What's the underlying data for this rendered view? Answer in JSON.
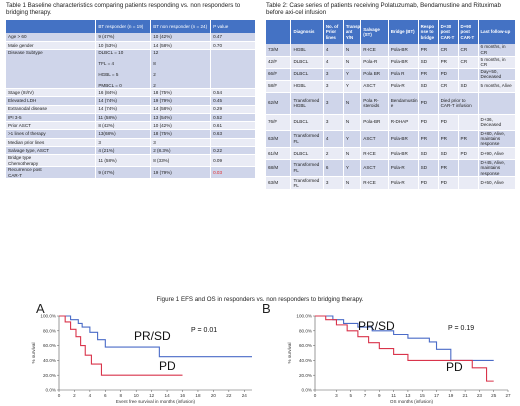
{
  "table1": {
    "caption": "Table 1 Baseline characteristics comparing patients responding vs. non responders to bridging therapy.",
    "headers": [
      "",
      "BT responder  (n = 19)",
      "BT non responder (n = 24)",
      "P value"
    ],
    "rows": [
      {
        "label": "Age > 60",
        "resp": "9 (47%)",
        "nonresp": "10 (42%)",
        "p": "0.47"
      },
      {
        "label": "Male gender",
        "resp": "10 (53%)",
        "nonresp": "14 (58%)",
        "p": "0.70"
      },
      {
        "label": "Disease Subtype",
        "resp": "DLBCL = 10\n\nTFL = 4\n\nHGBL = 5\n\nPMBCL = 0",
        "nonresp": "12\n\n8\n\n2\n\n2",
        "p": ""
      },
      {
        "label": "Stage (III/IV)",
        "resp": "16 (84%)",
        "nonresp": "18 (75%)",
        "p": "0.54"
      },
      {
        "label": "Elevated LDH",
        "resp": "14 (74%)",
        "nonresp": "19 (79%)",
        "p": "0.45"
      },
      {
        "label": "Extranodal disease",
        "resp": "14 (74%)",
        "nonresp": "14 (58%)",
        "p": "0.29"
      },
      {
        "label": "IPI 3-5",
        "resp": "11 (58%)",
        "nonresp": "13 (54%)",
        "p": "0.52"
      },
      {
        "label": "Prior ASCT",
        "resp": "8 (42%)",
        "nonresp": "10 (42%)",
        "p": "0.61"
      },
      {
        "label": ">1 lines of therapy",
        "resp": "13(68%)",
        "nonresp": "18 (75%)",
        "p": "0.63"
      },
      {
        "label": "Median prior lines",
        "resp": "3",
        "nonresp": "3",
        "p": ""
      },
      {
        "label": "Salvage type, ASCT",
        "resp": "4 (21%)",
        "nonresp": "2 (8.3%)",
        "p": "0.22"
      },
      {
        "label": "Bridge type\nChemotherapy",
        "resp": "11 (58%)",
        "nonresp": "8 (33%)",
        "p": "0.09"
      },
      {
        "label": "Recurrence      post\nCAR-T",
        "resp": "9 (47%)",
        "nonresp": "19 (79%)",
        "p": "0.03"
      }
    ]
  },
  "table2": {
    "caption": "Table 2: Case series of patients receiving Polatuzumab, Bendamustine and Rituximab before axi-cel infusion",
    "headers": [
      "",
      "Diagnosis",
      "No. of Prior lines",
      "Transpl ant Y/N",
      "Salvage (ST)",
      "Bridge (BT)",
      "Respo nse to bridge",
      "D+30 post CAR-T",
      "D+90 post CAR-T",
      "Last follow-up"
    ],
    "rows": [
      {
        "pt": "73/M",
        "dx": "HGBL",
        "lines": "4",
        "tx": "N",
        "st": "R-ICE",
        "bt": "Pola-BR",
        "resp": "PR",
        "d30": "CR",
        "d90": "CR",
        "last": "6 months, in CR"
      },
      {
        "pt": "42/F",
        "dx": "DLBCL",
        "lines": "4",
        "tx": "N",
        "st": "Pola-R",
        "bt": "Pola-BR",
        "resp": "SD",
        "d30": "PR",
        "d90": "CR",
        "last": "5 months, in CR"
      },
      {
        "pt": "66/F",
        "dx": "DLBCL",
        "lines": "3",
        "tx": "Y",
        "st": "Pola BR",
        "bt": "Pola R",
        "resp": "PR",
        "d30": "PD",
        "d90": "",
        "last": "Day+50, Deceased"
      },
      {
        "pt": "58/F",
        "dx": "HGBL",
        "lines": "3",
        "tx": "Y",
        "st": "ASCT",
        "bt": "Pola-R",
        "resp": "SD",
        "d30": "CR",
        "d90": "SD",
        "last": "5 months, Alive"
      },
      {
        "pt": "62/M",
        "dx": "Transformed HGBL",
        "lines": "3",
        "tx": "N",
        "st": "Pola R-steroids",
        "bt": "Bendamustin e",
        "resp": "PD",
        "d30": "Died prior to CAR-T infusion",
        "d90": "",
        "last": ""
      },
      {
        "pt": "76/F",
        "dx": "DLBCL",
        "lines": "3",
        "tx": "N",
        "st": "Pola-BR",
        "bt": "R-DHAP",
        "resp": "PD",
        "d30": "PD",
        "d90": "",
        "last": "D+36, Deceased"
      },
      {
        "pt": "63/M",
        "dx": "Transformed FL",
        "lines": "4",
        "tx": "Y",
        "st": "ASCT",
        "bt": "Pola-BR",
        "resp": "PR",
        "d30": "PR",
        "d90": "PR",
        "last": "D+80, Alive, maintains response"
      },
      {
        "pt": "61/M",
        "dx": "DLBCL",
        "lines": "2",
        "tx": "N",
        "st": "R-ICE",
        "bt": "Pola-BR",
        "resp": "SD",
        "d30": "SD",
        "d90": "PD",
        "last": "D+90, Alive"
      },
      {
        "pt": "68/M",
        "dx": "Transformed FL",
        "lines": "6",
        "tx": "Y",
        "st": "ASCT",
        "bt": "Pola-R",
        "resp": "SD",
        "d30": "PR",
        "d90": "",
        "last": "D+45, Alive, maintains response"
      },
      {
        "pt": "63/M",
        "dx": "Transformed FL",
        "lines": "3",
        "tx": "N",
        "st": "R-ICE",
        "bt": "Pola-R",
        "resp": "PD",
        "d30": "PD",
        "d90": "",
        "last": "D+50, Alive"
      }
    ]
  },
  "figure": {
    "caption": "Figure 1 EFS and OS in responders vs. non responders to bridging therapy.",
    "colors": {
      "responder": "#4a6bc7",
      "pd": "#d9344b"
    }
  },
  "chart_data": [
    {
      "type": "line",
      "panel": "A",
      "xlabel": "Event free survival in months (infusion)",
      "ylabel": "% survival",
      "xlim": [
        0,
        25
      ],
      "ylim": [
        0,
        100
      ],
      "xticks": [
        0,
        2,
        4,
        6,
        8,
        10,
        12,
        14,
        16,
        18,
        20,
        22,
        24
      ],
      "yticks": [
        0,
        20,
        40,
        60,
        80,
        100
      ],
      "ytick_labels": [
        "0.0%",
        "20.0%",
        "40.0%",
        "60.0%",
        "80.0%",
        "100.0%"
      ],
      "annotation": "P = 0.01",
      "step": true,
      "series": [
        {
          "name": "PR/SD",
          "color": "#4a6bc7",
          "x": [
            0,
            1.5,
            2.5,
            3,
            4,
            5,
            6,
            13,
            25
          ],
          "y": [
            100,
            95,
            90,
            85,
            78,
            68,
            58,
            45,
            45
          ]
        },
        {
          "name": "PD",
          "color": "#d9344b",
          "x": [
            0,
            0.8,
            1.5,
            2.2,
            2.8,
            3.4,
            4.2,
            5.5,
            16
          ],
          "y": [
            100,
            92,
            82,
            72,
            60,
            47,
            35,
            20,
            20
          ]
        }
      ]
    },
    {
      "type": "line",
      "panel": "B",
      "xlabel": "OS months (infusion)",
      "ylabel": "% survival",
      "xlim": [
        0,
        27
      ],
      "ylim": [
        0,
        100
      ],
      "xticks": [
        0,
        3,
        5,
        7,
        9,
        11,
        13,
        15,
        17,
        19,
        21,
        23,
        25,
        27
      ],
      "yticks": [
        0,
        20,
        40,
        60,
        80,
        100
      ],
      "ytick_labels": [
        "0.0%",
        "20.0%",
        "40.0%",
        "60.0%",
        "80.0%",
        "100.0%"
      ],
      "annotation": "P = 0.19",
      "step": true,
      "series": [
        {
          "name": "PR/SD",
          "color": "#4a6bc7",
          "x": [
            0,
            2.5,
            4,
            6,
            8,
            11,
            13,
            16,
            17,
            19,
            25
          ],
          "y": [
            100,
            95,
            90,
            85,
            80,
            75,
            70,
            65,
            55,
            40,
            40
          ]
        },
        {
          "name": "PD",
          "color": "#d9344b",
          "x": [
            0,
            1.5,
            3,
            4.5,
            6,
            7.5,
            9,
            11,
            13,
            18,
            22,
            24,
            25
          ],
          "y": [
            100,
            95,
            88,
            80,
            72,
            64,
            56,
            48,
            40,
            40,
            30,
            12,
            12
          ]
        }
      ]
    }
  ]
}
